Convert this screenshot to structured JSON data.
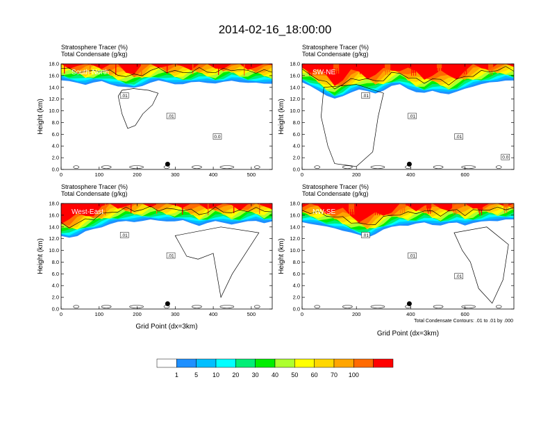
{
  "figure_title": "2014-02-16_18:00:00",
  "note": "Total Condensate Contours: .01 to .01 by .000",
  "colorbar": {
    "colors": [
      "#ffffff",
      "#1e90ff",
      "#00bfff",
      "#00ffff",
      "#00ee76",
      "#00ee00",
      "#adff2f",
      "#ffff00",
      "#ffd700",
      "#ffa500",
      "#ff6a00",
      "#ff0000"
    ],
    "labels": [
      "1",
      "5",
      "10",
      "20",
      "30",
      "40",
      "50",
      "60",
      "70",
      "100"
    ]
  },
  "chart_data": [
    {
      "type": "contour",
      "region": "South-North",
      "header": [
        "Stratosphere Tracer   (%)",
        "Total Condensate   (g/kg)"
      ],
      "ylabel": "Height (km)",
      "xlabel": "",
      "xlim": [
        0,
        555
      ],
      "ylim": [
        0,
        18
      ],
      "xticks": [
        "0",
        "100",
        "200",
        "300",
        "400",
        "500"
      ],
      "yticks": [
        "0.0",
        "2.0",
        "4.0",
        "6.0",
        "8.0",
        "10.0",
        "12.0",
        "14.0",
        "16.0",
        "18.0"
      ],
      "tracer_top_km": [
        15.2,
        15.0,
        14.8,
        14.5,
        14.8,
        15.0,
        14.6,
        14.2,
        14.0,
        13.9,
        14.3,
        14.8,
        15.1,
        14.9,
        14.6,
        14.5,
        14.8,
        15.0,
        14.8,
        14.6,
        14.9,
        15.2,
        14.9,
        14.7,
        14.8,
        14.7,
        14.6
      ],
      "marker": {
        "x": 280,
        "y": 0.9
      },
      "contour_labels": [
        ".01",
        ".01",
        "0.0"
      ]
    },
    {
      "type": "contour",
      "region": "SW-NE",
      "header": [
        "Stratosphere Tracer   (%)",
        "Total Condensate   (g/kg)"
      ],
      "ylabel": "Height (km)",
      "xlabel": "",
      "xlim": [
        0,
        780
      ],
      "ylim": [
        0,
        18
      ],
      "xticks": [
        "0",
        "200",
        "400",
        "600"
      ],
      "yticks": [
        "0.0",
        "2.0",
        "4.0",
        "6.0",
        "8.0",
        "10.0",
        "12.0",
        "14.0",
        "16.0",
        "18.0"
      ],
      "tracer_top_km": [
        14.8,
        14.2,
        13.5,
        12.6,
        12.0,
        12.5,
        13.2,
        13.6,
        13.3,
        13.0,
        13.5,
        14.2,
        14.5,
        13.8,
        13.2,
        13.0,
        13.4,
        13.1,
        12.8,
        13.2,
        13.8,
        14.2,
        14.5,
        14.8,
        15.0,
        15.2,
        15.1
      ],
      "marker": {
        "x": 395,
        "y": 0.9
      },
      "contour_labels": [
        ".01",
        ".01",
        ".01",
        "0.0"
      ]
    },
    {
      "type": "contour",
      "region": "West-East",
      "header": [
        "Stratosphere Tracer   (%)",
        "Total Condensate   (g/kg)"
      ],
      "ylabel": "Height (km)",
      "xlabel": "Grid Point (dx=3km)",
      "xlim": [
        0,
        555
      ],
      "ylim": [
        0,
        18
      ],
      "xticks": [
        "0",
        "100",
        "200",
        "300",
        "400",
        "500"
      ],
      "yticks": [
        "0.0",
        "2.0",
        "4.0",
        "6.0",
        "8.0",
        "10.0",
        "12.0",
        "14.0",
        "16.0",
        "18.0"
      ],
      "tracer_top_km": [
        12.4,
        12.2,
        12.5,
        13.2,
        13.6,
        14.0,
        14.5,
        14.8,
        15.0,
        14.9,
        15.0,
        15.2,
        15.1,
        15.0,
        14.9,
        15.1,
        14.7,
        14.2,
        14.6,
        15.0,
        14.8,
        14.4,
        14.6,
        15.0,
        15.1,
        14.6,
        14.9
      ],
      "marker": {
        "x": 280,
        "y": 0.9
      },
      "contour_labels": [
        ".01",
        ".01"
      ]
    },
    {
      "type": "contour",
      "region": "NW-SE",
      "header": [
        "Stratosphere Tracer   (%)",
        "Total Condensate   (g/kg)"
      ],
      "ylabel": "Height (km)",
      "xlabel": "Grid Point (dx=3km)",
      "xlim": [
        0,
        780
      ],
      "ylim": [
        0,
        18
      ],
      "xticks": [
        "0",
        "200",
        "400",
        "600"
      ],
      "yticks": [
        "0.0",
        "2.0",
        "4.0",
        "6.0",
        "8.0",
        "10.0",
        "12.0",
        "14.0",
        "16.0",
        "18.0"
      ],
      "tracer_top_km": [
        14.8,
        14.6,
        14.3,
        14.0,
        13.8,
        13.4,
        13.0,
        12.6,
        12.2,
        12.8,
        13.5,
        14.0,
        14.3,
        14.2,
        14.5,
        14.8,
        14.4,
        14.2,
        14.6,
        14.8,
        14.3,
        14.6,
        14.9,
        15.1,
        15.0,
        15.2,
        15.3
      ],
      "marker": {
        "x": 395,
        "y": 0.9
      },
      "contour_labels": [
        ".01",
        ".01",
        ".01"
      ]
    }
  ]
}
